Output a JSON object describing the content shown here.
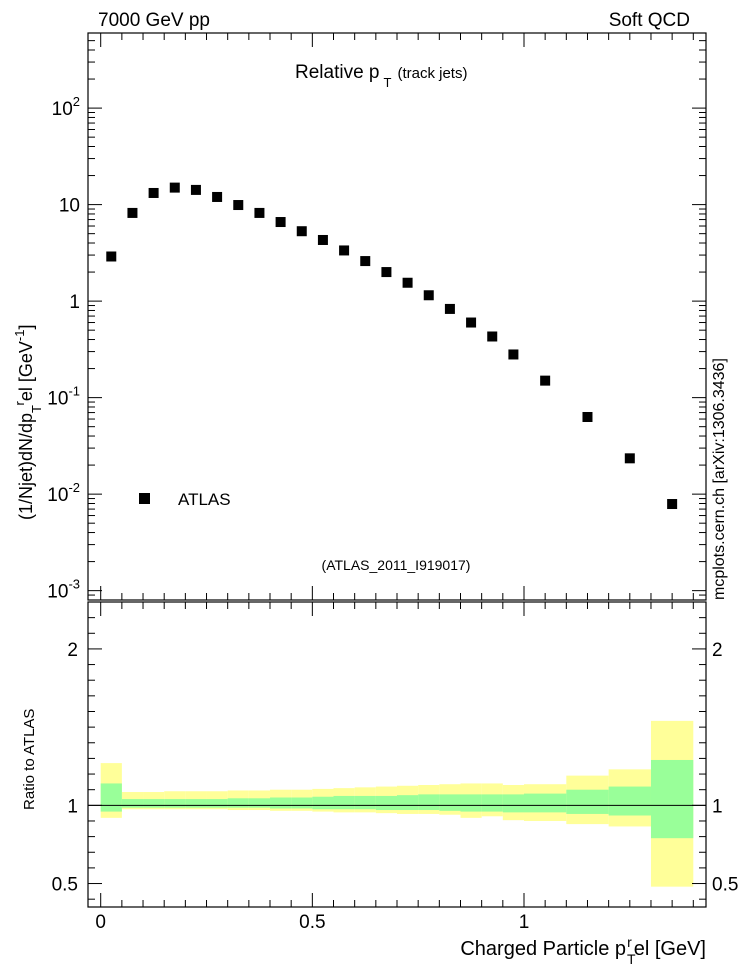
{
  "header": {
    "energy": "7000 GeV pp",
    "process": "Soft QCD"
  },
  "side_label": "mcplots.cern.ch [arXiv:1306.3436]",
  "colors": {
    "outer_band": "#ffff99",
    "inner_band": "#99ff99",
    "analysis_id": "#999999",
    "data_marker": "#000000"
  },
  "chart_data": [
    {
      "type": "scatter",
      "title": "Relative p",
      "title_sub": "T",
      "title_suffix": "(track jets)",
      "ylabel": "(1/Njet)dN/dp",
      "ylabel_sub": "T",
      "ylabel_sup": "r",
      "ylabel_tail": "el [GeV",
      "ylabel_unit_sup": "-1",
      "ylabel_close": "]",
      "yscale": "log",
      "xlim": [
        -0.03,
        1.43
      ],
      "ylim": [
        0.0008,
        600
      ],
      "ytick_labels": [
        {
          "value": 0.001,
          "base": "10",
          "exp": "-3"
        },
        {
          "value": 0.01,
          "base": "10",
          "exp": "-2"
        },
        {
          "value": 0.1,
          "base": "10",
          "exp": "-1"
        },
        {
          "value": 1,
          "base": "1",
          "exp": ""
        },
        {
          "value": 10,
          "base": "10",
          "exp": ""
        },
        {
          "value": 100,
          "base": "10",
          "exp": "2"
        }
      ],
      "analysis_id": "(ATLAS_2011_I919017)",
      "legend": [
        {
          "name": "ATLAS",
          "marker": "square"
        }
      ],
      "legend_position": "lower-left",
      "series": [
        {
          "name": "ATLAS",
          "x": [
            0.025,
            0.075,
            0.125,
            0.175,
            0.225,
            0.275,
            0.325,
            0.375,
            0.425,
            0.475,
            0.525,
            0.575,
            0.625,
            0.675,
            0.725,
            0.775,
            0.825,
            0.875,
            0.925,
            0.975,
            1.05,
            1.15,
            1.25,
            1.35
          ],
          "y": [
            2.9,
            8.2,
            13.2,
            15.0,
            14.2,
            12.0,
            9.9,
            8.2,
            6.6,
            5.3,
            4.3,
            3.35,
            2.6,
            2.0,
            1.55,
            1.15,
            0.83,
            0.6,
            0.43,
            0.28,
            0.15,
            0.063,
            0.0235,
            0.0079
          ]
        }
      ]
    },
    {
      "type": "area",
      "ylabel": "Ratio to ATLAS",
      "xlabel": "Charged Particle p",
      "xlabel_sub": "T",
      "xlabel_sup": "r",
      "xlabel_tail": "el [GeV]",
      "xlim": [
        -0.03,
        1.43
      ],
      "ylim": [
        0.35,
        2.3
      ],
      "yticks": [
        0.5,
        1,
        2
      ],
      "ytick_labels": [
        "0.5",
        "1",
        "2"
      ],
      "xticks": [
        0,
        0.5,
        1
      ],
      "xtick_labels": [
        "0",
        "0.5",
        "1"
      ],
      "reference_line": 1,
      "bins": [
        {
          "lo": 0.0,
          "hi": 0.05,
          "outer": [
            0.92,
            1.27
          ],
          "inner": [
            0.96,
            1.14
          ]
        },
        {
          "lo": 0.05,
          "hi": 0.1,
          "outer": [
            0.975,
            1.085
          ],
          "inner": [
            0.985,
            1.04
          ]
        },
        {
          "lo": 0.1,
          "hi": 0.15,
          "outer": [
            0.975,
            1.085
          ],
          "inner": [
            0.985,
            1.04
          ]
        },
        {
          "lo": 0.15,
          "hi": 0.2,
          "outer": [
            0.975,
            1.09
          ],
          "inner": [
            0.985,
            1.04
          ]
        },
        {
          "lo": 0.2,
          "hi": 0.25,
          "outer": [
            0.975,
            1.09
          ],
          "inner": [
            0.985,
            1.04
          ]
        },
        {
          "lo": 0.25,
          "hi": 0.3,
          "outer": [
            0.975,
            1.09
          ],
          "inner": [
            0.985,
            1.04
          ]
        },
        {
          "lo": 0.3,
          "hi": 0.35,
          "outer": [
            0.97,
            1.095
          ],
          "inner": [
            0.985,
            1.045
          ]
        },
        {
          "lo": 0.35,
          "hi": 0.4,
          "outer": [
            0.97,
            1.095
          ],
          "inner": [
            0.985,
            1.045
          ]
        },
        {
          "lo": 0.4,
          "hi": 0.45,
          "outer": [
            0.965,
            1.1
          ],
          "inner": [
            0.98,
            1.05
          ]
        },
        {
          "lo": 0.45,
          "hi": 0.5,
          "outer": [
            0.965,
            1.1
          ],
          "inner": [
            0.98,
            1.05
          ]
        },
        {
          "lo": 0.5,
          "hi": 0.55,
          "outer": [
            0.96,
            1.105
          ],
          "inner": [
            0.975,
            1.055
          ]
        },
        {
          "lo": 0.55,
          "hi": 0.6,
          "outer": [
            0.955,
            1.11
          ],
          "inner": [
            0.975,
            1.06
          ]
        },
        {
          "lo": 0.6,
          "hi": 0.65,
          "outer": [
            0.955,
            1.115
          ],
          "inner": [
            0.975,
            1.06
          ]
        },
        {
          "lo": 0.65,
          "hi": 0.7,
          "outer": [
            0.95,
            1.12
          ],
          "inner": [
            0.97,
            1.06
          ]
        },
        {
          "lo": 0.7,
          "hi": 0.75,
          "outer": [
            0.945,
            1.125
          ],
          "inner": [
            0.97,
            1.065
          ]
        },
        {
          "lo": 0.75,
          "hi": 0.8,
          "outer": [
            0.945,
            1.13
          ],
          "inner": [
            0.97,
            1.07
          ]
        },
        {
          "lo": 0.8,
          "hi": 0.85,
          "outer": [
            0.94,
            1.135
          ],
          "inner": [
            0.965,
            1.07
          ]
        },
        {
          "lo": 0.85,
          "hi": 0.9,
          "outer": [
            0.92,
            1.14
          ],
          "inner": [
            0.96,
            1.07
          ]
        },
        {
          "lo": 0.9,
          "hi": 0.95,
          "outer": [
            0.93,
            1.14
          ],
          "inner": [
            0.96,
            1.07
          ]
        },
        {
          "lo": 0.95,
          "hi": 1.0,
          "outer": [
            0.905,
            1.13
          ],
          "inner": [
            0.955,
            1.07
          ]
        },
        {
          "lo": 1.0,
          "hi": 1.1,
          "outer": [
            0.9,
            1.135
          ],
          "inner": [
            0.955,
            1.075
          ]
        },
        {
          "lo": 1.1,
          "hi": 1.2,
          "outer": [
            0.88,
            1.19
          ],
          "inner": [
            0.945,
            1.1
          ]
        },
        {
          "lo": 1.2,
          "hi": 1.3,
          "outer": [
            0.865,
            1.23
          ],
          "inner": [
            0.935,
            1.12
          ]
        },
        {
          "lo": 1.3,
          "hi": 1.4,
          "outer": [
            0.48,
            1.54
          ],
          "inner": [
            0.79,
            1.29
          ]
        }
      ]
    }
  ]
}
